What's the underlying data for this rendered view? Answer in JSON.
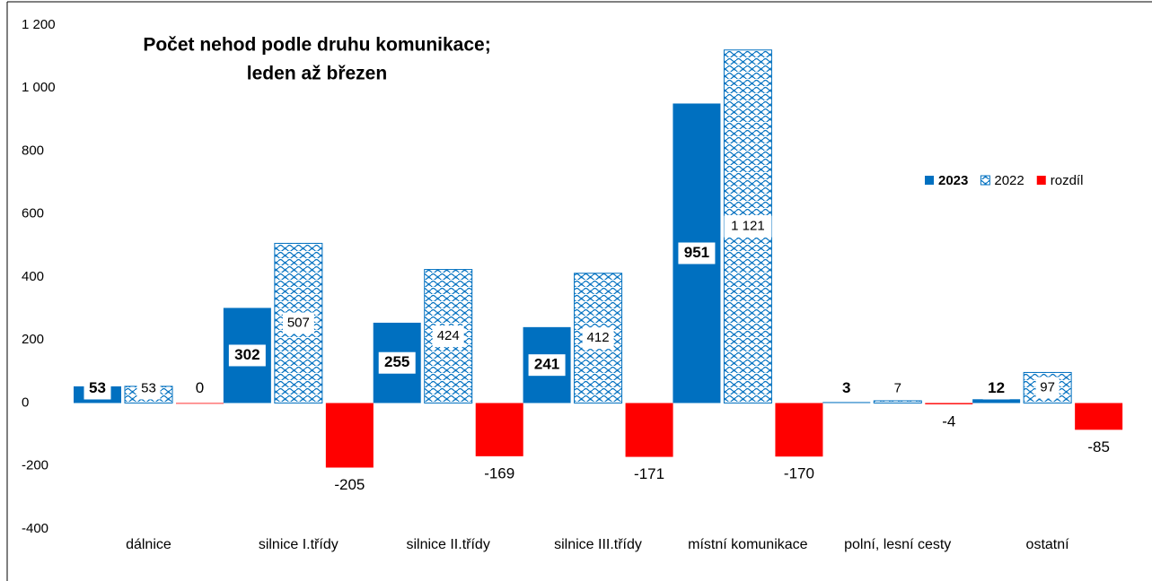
{
  "chart_data": {
    "type": "bar",
    "title": "Počet nehod podle druhu komunikace;",
    "subtitle": "leden až březen",
    "categories": [
      "dálnice",
      "silnice I.třídy",
      "silnice II.třídy",
      "silnice III.třídy",
      "místní komunikace",
      "polní, lesní cesty",
      "ostatní"
    ],
    "series": [
      {
        "name": "2023",
        "color": "#0070c0",
        "values": [
          53,
          302,
          255,
          241,
          951,
          3,
          12
        ]
      },
      {
        "name": "2022",
        "color": "#0070c0",
        "fill": "pattern",
        "values": [
          53,
          507,
          424,
          412,
          1121,
          7,
          97
        ],
        "value_labels": [
          "53",
          "507",
          "424",
          "412",
          "1 121",
          "7",
          "97"
        ]
      },
      {
        "name": "rozdíl",
        "color": "#ff0000",
        "values": [
          0,
          -205,
          -169,
          -171,
          -170,
          -4,
          -85
        ]
      }
    ],
    "ylim": [
      -400,
      1200
    ],
    "yticks": [
      -400,
      -200,
      0,
      200,
      400,
      600,
      800,
      {
        "value": 1000,
        "label": "1 000"
      },
      {
        "value": 1200,
        "label": "1 200"
      }
    ],
    "grid": false,
    "legend": "right"
  }
}
